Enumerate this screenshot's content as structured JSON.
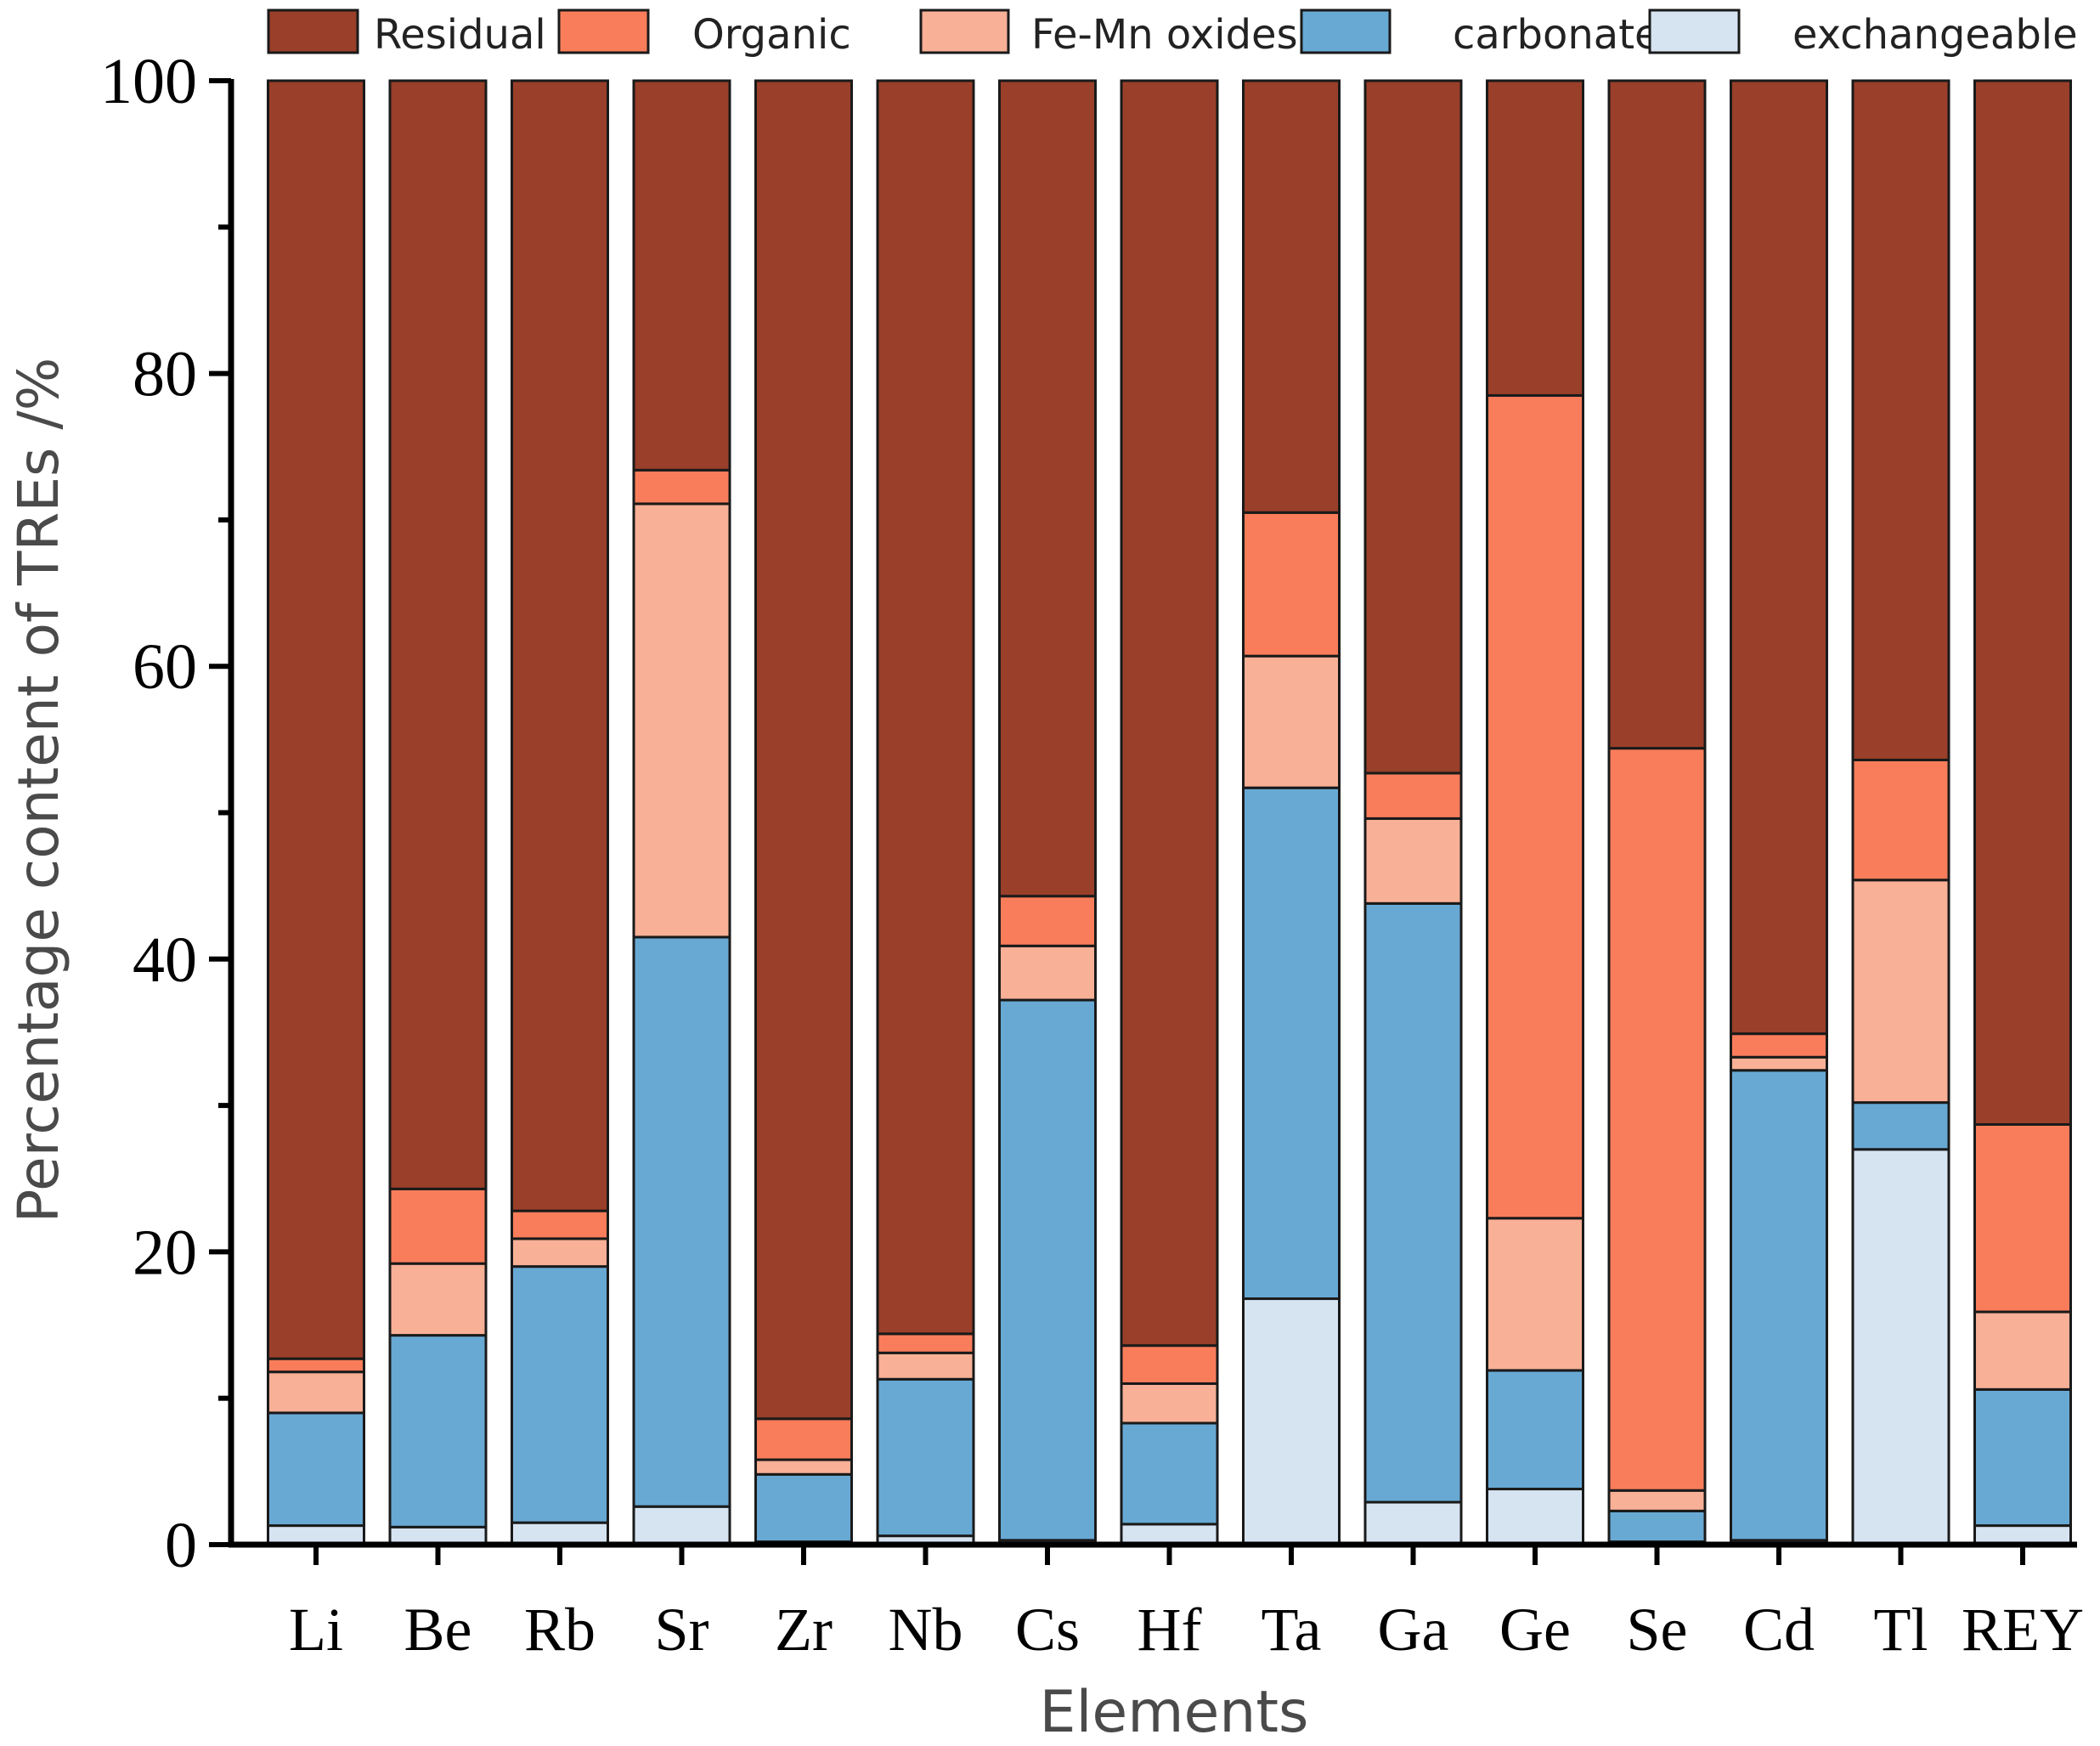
{
  "chart_data": {
    "type": "bar",
    "stacked": true,
    "title": "",
    "xlabel": "Elements",
    "ylabel": "Percentage content of TREs /%",
    "ylim": [
      0,
      100
    ],
    "yticks": [
      0,
      20,
      40,
      60,
      80,
      100
    ],
    "grid": false,
    "legend_position": "top",
    "categories": [
      "Li",
      "Be",
      "Rb",
      "Sr",
      "Zr",
      "Nb",
      "Cs",
      "Hf",
      "Ta",
      "Ga",
      "Ge",
      "Se",
      "Cd",
      "Tl",
      "REY"
    ],
    "series": [
      {
        "name": "exchangeable",
        "color": "#d6e4f2",
        "values": [
          1.3,
          1.2,
          1.5,
          2.6,
          0.2,
          0.6,
          0.3,
          1.4,
          16.8,
          2.9,
          3.8,
          0.2,
          0.3,
          27.0,
          1.3
        ]
      },
      {
        "name": "carbonate",
        "color": "#68a9d4",
        "values": [
          7.7,
          13.1,
          17.5,
          38.9,
          4.6,
          10.7,
          36.9,
          6.9,
          34.9,
          40.9,
          8.1,
          2.1,
          32.1,
          3.2,
          9.3
        ]
      },
      {
        "name": "Fe-Mn oxides",
        "color": "#f8b096",
        "values": [
          2.8,
          4.9,
          1.9,
          29.6,
          1.0,
          1.8,
          3.7,
          2.7,
          9.0,
          5.8,
          10.4,
          1.4,
          0.9,
          15.2,
          5.3
        ]
      },
      {
        "name": "Organic",
        "color": "#f97d5b",
        "values": [
          0.9,
          5.1,
          1.9,
          2.3,
          2.8,
          1.3,
          3.4,
          2.6,
          9.8,
          3.1,
          56.2,
          50.7,
          1.6,
          8.2,
          12.8
        ]
      },
      {
        "name": "Residual",
        "color": "#9a3f29",
        "values": [
          87.3,
          75.7,
          77.2,
          26.6,
          91.4,
          85.6,
          55.7,
          86.4,
          29.5,
          47.3,
          21.5,
          45.6,
          65.1,
          46.4,
          71.3
        ]
      }
    ],
    "legend_order": [
      "Residual",
      "Organic",
      "Fe-Mn oxides",
      "carbonate",
      "exchangeable"
    ]
  }
}
